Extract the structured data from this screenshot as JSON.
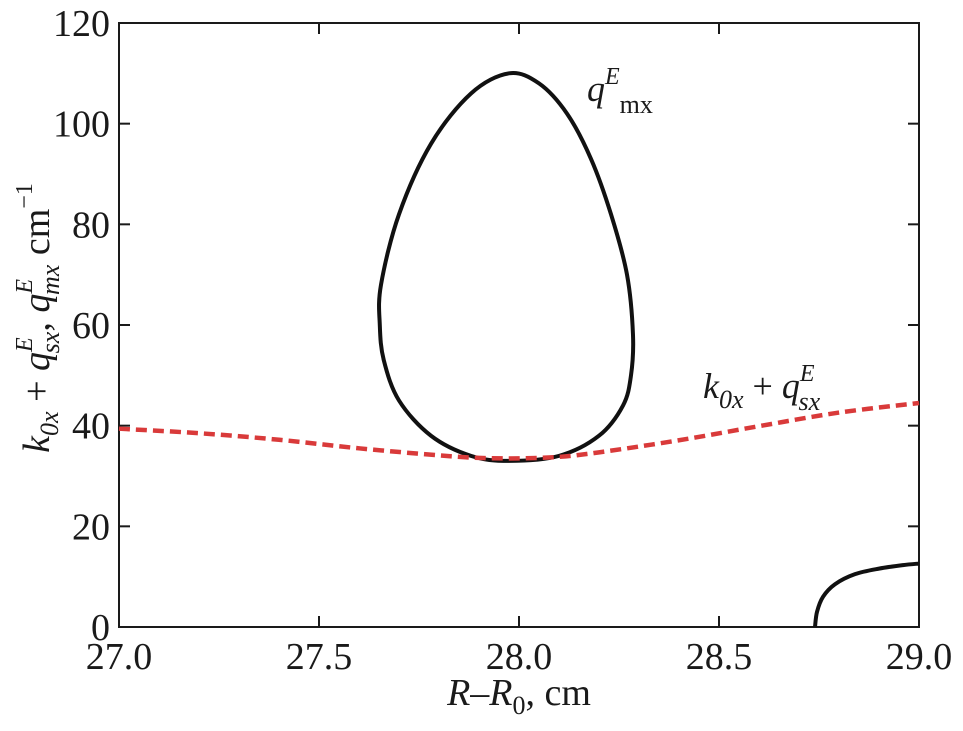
{
  "chart_data": {
    "type": "line",
    "xlabel": "R–R0, cm",
    "xlabel_parts": {
      "var": "R",
      "dash": "–",
      "sub_var": "R",
      "sub": "0",
      "unit": ", cm"
    },
    "ylabel": "k0x + qEsx, qEmx cm−1",
    "ylabel_parts": {
      "k": "k",
      "k_sub": "0x",
      "plus": " + ",
      "q1": "q",
      "q1_sup": "E",
      "q1_sub": "sx",
      "comma": ", ",
      "q2": "q",
      "q2_sup": "E",
      "q2_sub": "mx",
      "unit": " cm",
      "unit_sup": "−1"
    },
    "xlim": [
      27.0,
      29.0
    ],
    "ylim": [
      0,
      120
    ],
    "xticks": [
      27.0,
      27.5,
      28.0,
      28.5,
      29.0
    ],
    "xtick_labels": [
      "27.0",
      "27.5",
      "28.0",
      "28.5",
      "29.0"
    ],
    "yticks": [
      0,
      20,
      40,
      60,
      80,
      100,
      120
    ],
    "ytick_labels": [
      "0",
      "20",
      "40",
      "60",
      "80",
      "100",
      "120"
    ],
    "grid": false,
    "series": [
      {
        "style": "solid",
        "color": "#111111",
        "closed": true,
        "x": [
          27.975,
          28.05,
          28.12,
          28.18,
          28.23,
          28.27,
          28.285,
          28.28,
          28.26,
          28.2,
          28.1,
          27.975,
          27.88,
          27.78,
          27.7,
          27.662,
          27.652,
          27.655,
          27.7,
          27.78,
          27.88
        ],
        "y": [
          110,
          108,
          102,
          93,
          82,
          70,
          58,
          50,
          44,
          38,
          34,
          33,
          34,
          38,
          45,
          53,
          60,
          68,
          82,
          96,
          106
        ]
      },
      {
        "style": "solid",
        "color": "#111111",
        "closed": false,
        "x": [
          28.74,
          28.745,
          28.76,
          28.79,
          28.84,
          28.9,
          28.96,
          29.0
        ],
        "y": [
          0,
          3,
          6,
          8.5,
          10.5,
          11.6,
          12.3,
          12.6
        ]
      },
      {
        "style": "dashed",
        "color": "#d93a3a",
        "closed": false,
        "x": [
          27.0,
          27.2,
          27.4,
          27.6,
          27.8,
          27.9,
          28.0,
          28.1,
          28.2,
          28.4,
          28.6,
          28.8,
          29.0
        ],
        "y": [
          39.4,
          38.5,
          37.2,
          35.5,
          34.1,
          33.6,
          33.5,
          33.8,
          34.7,
          37.1,
          39.9,
          42.6,
          44.5
        ]
      }
    ],
    "annotations": [
      {
        "x": 28.17,
        "y": 104.5,
        "base": "q",
        "sup": "E",
        "sub": "mx"
      },
      {
        "x": 28.46,
        "y": 45.5,
        "k": "k",
        "k_sub": "0x",
        "plus": " + ",
        "q": "q",
        "q_sup": "E",
        "q_sub": "sx"
      }
    ]
  }
}
